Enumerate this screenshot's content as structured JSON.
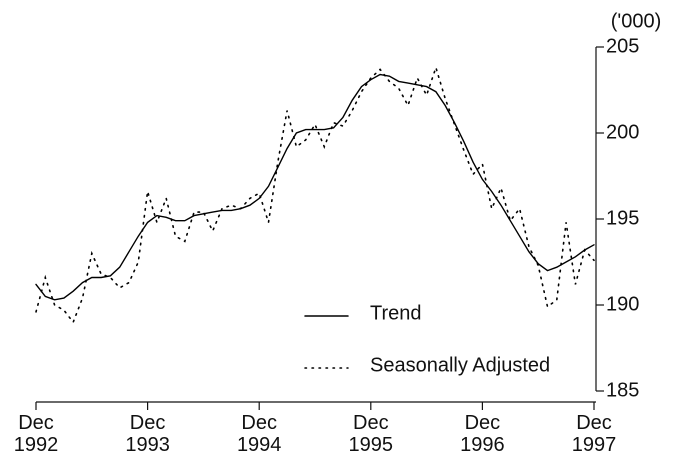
{
  "chart_data": {
    "type": "line",
    "y_unit": "('000)",
    "categories": [
      "Dec 1992",
      null,
      null,
      null,
      null,
      null,
      null,
      null,
      null,
      null,
      null,
      null,
      "Dec 1993",
      null,
      null,
      null,
      null,
      null,
      null,
      null,
      null,
      null,
      null,
      null,
      "Dec 1994",
      null,
      null,
      null,
      null,
      null,
      null,
      null,
      null,
      null,
      null,
      null,
      "Dec 1995",
      null,
      null,
      null,
      null,
      null,
      null,
      null,
      null,
      null,
      null,
      null,
      "Dec 1996",
      null,
      null,
      null,
      null,
      null,
      null,
      null,
      null,
      null,
      null,
      null,
      "Dec 1997"
    ],
    "series": [
      {
        "name": "Trend",
        "color": "#000000",
        "style": "solid",
        "values": [
          191.2,
          190.5,
          190.3,
          190.4,
          190.8,
          191.3,
          191.6,
          191.6,
          191.7,
          192.2,
          193.1,
          194.0,
          194.8,
          195.2,
          195.1,
          194.9,
          194.9,
          195.2,
          195.3,
          195.4,
          195.5,
          195.5,
          195.6,
          195.8,
          196.2,
          196.9,
          198.0,
          199.1,
          200.0,
          200.2,
          200.2,
          200.2,
          200.3,
          200.9,
          201.9,
          202.7,
          203.1,
          203.4,
          203.3,
          203.0,
          202.9,
          202.8,
          202.7,
          202.4,
          201.6,
          200.6,
          199.5,
          198.3,
          197.3,
          196.6,
          195.8,
          194.9,
          194.0,
          193.1,
          192.4,
          192.0,
          192.2,
          192.5,
          192.8,
          193.2,
          193.5
        ]
      },
      {
        "name": "Seasonally Adjusted",
        "color": "#000000",
        "style": "dotted",
        "values": [
          189.6,
          191.6,
          190.0,
          189.7,
          189.0,
          190.4,
          193.0,
          191.8,
          191.6,
          191.0,
          191.3,
          192.5,
          196.6,
          194.8,
          196.2,
          194.0,
          193.7,
          195.4,
          195.4,
          194.3,
          195.6,
          195.8,
          195.6,
          196.2,
          196.5,
          194.8,
          198.3,
          201.3,
          199.2,
          199.6,
          200.5,
          199.2,
          200.6,
          200.4,
          201.3,
          202.4,
          203.2,
          203.7,
          203.0,
          202.6,
          201.6,
          203.2,
          202.2,
          203.8,
          202.0,
          200.5,
          199.0,
          197.6,
          198.2,
          195.6,
          196.8,
          194.9,
          195.6,
          193.4,
          192.3,
          189.9,
          190.3,
          194.8,
          191.2,
          193.2,
          192.6
        ]
      }
    ],
    "ylim": [
      185,
      205
    ],
    "yticks": [
      185,
      190,
      195,
      200,
      205
    ],
    "legend": "lower center",
    "grid": false
  }
}
